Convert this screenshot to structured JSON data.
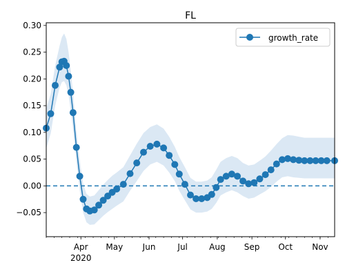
{
  "chart_data": {
    "type": "line",
    "title": "FL",
    "xlabel": "",
    "ylabel": "",
    "xlim": [
      "2020-03-01",
      "2020-11-14"
    ],
    "ylim": [
      -0.095,
      0.305
    ],
    "x_ticks": [
      {
        "date": "2020-04-01",
        "label": "Apr",
        "sublabel": "2020"
      },
      {
        "date": "2020-05-01",
        "label": "May",
        "sublabel": ""
      },
      {
        "date": "2020-06-01",
        "label": "Jun",
        "sublabel": ""
      },
      {
        "date": "2020-07-01",
        "label": "Jul",
        "sublabel": ""
      },
      {
        "date": "2020-08-01",
        "label": "Aug",
        "sublabel": ""
      },
      {
        "date": "2020-09-01",
        "label": "Sep",
        "sublabel": ""
      },
      {
        "date": "2020-10-01",
        "label": "Oct",
        "sublabel": ""
      },
      {
        "date": "2020-11-01",
        "label": "Nov",
        "sublabel": ""
      }
    ],
    "y_ticks": [
      -0.05,
      0.0,
      0.05,
      0.1,
      0.15,
      0.2,
      0.25,
      0.3
    ],
    "y_tick_labels": [
      "−0.05",
      "0.00",
      "0.05",
      "0.10",
      "0.15",
      "0.20",
      "0.25",
      "0.30"
    ],
    "legend": {
      "position": "top-right",
      "entries": [
        "growth_rate"
      ]
    },
    "reference_line": {
      "y": 0.0,
      "style": "dashed"
    },
    "grid": false,
    "colors": {
      "series": "#1f77b4",
      "band": "#dbe8f4"
    },
    "series": [
      {
        "name": "growth_rate",
        "marker": "circle",
        "x": [
          "2020-03-01",
          "2020-03-05",
          "2020-03-09",
          "2020-03-13",
          "2020-03-15",
          "2020-03-17",
          "2020-03-19",
          "2020-03-21",
          "2020-03-23",
          "2020-03-25",
          "2020-03-28",
          "2020-03-31",
          "2020-04-03",
          "2020-04-06",
          "2020-04-09",
          "2020-04-13",
          "2020-04-17",
          "2020-04-21",
          "2020-04-25",
          "2020-04-29",
          "2020-05-03",
          "2020-05-09",
          "2020-05-15",
          "2020-05-21",
          "2020-05-27",
          "2020-06-02",
          "2020-06-08",
          "2020-06-14",
          "2020-06-19",
          "2020-06-24",
          "2020-06-28",
          "2020-07-03",
          "2020-07-08",
          "2020-07-13",
          "2020-07-18",
          "2020-07-23",
          "2020-07-27",
          "2020-07-31",
          "2020-08-04",
          "2020-08-09",
          "2020-08-14",
          "2020-08-19",
          "2020-08-24",
          "2020-08-29",
          "2020-09-03",
          "2020-09-08",
          "2020-09-13",
          "2020-09-18",
          "2020-09-23",
          "2020-09-28",
          "2020-10-03",
          "2020-10-08",
          "2020-10-13",
          "2020-10-18",
          "2020-10-23",
          "2020-10-28",
          "2020-11-02",
          "2020-11-07",
          "2020-11-14"
        ],
        "y": [
          0.108,
          0.135,
          0.188,
          0.222,
          0.232,
          0.233,
          0.225,
          0.205,
          0.175,
          0.137,
          0.072,
          0.018,
          -0.025,
          -0.043,
          -0.047,
          -0.045,
          -0.036,
          -0.027,
          -0.019,
          -0.012,
          -0.006,
          0.003,
          0.023,
          0.043,
          0.063,
          0.074,
          0.078,
          0.071,
          0.057,
          0.04,
          0.022,
          0.003,
          -0.017,
          -0.024,
          -0.024,
          -0.022,
          -0.016,
          -0.003,
          0.012,
          0.018,
          0.022,
          0.018,
          0.009,
          0.004,
          0.006,
          0.013,
          0.021,
          0.03,
          0.041,
          0.049,
          0.051,
          0.049,
          0.048,
          0.047,
          0.047,
          0.047,
          0.047,
          0.047,
          0.047
        ],
        "lower": [
          0.07,
          0.098,
          0.15,
          0.184,
          0.194,
          0.196,
          0.188,
          0.17,
          0.14,
          0.105,
          0.045,
          -0.008,
          -0.05,
          -0.068,
          -0.073,
          -0.072,
          -0.064,
          -0.056,
          -0.049,
          -0.043,
          -0.037,
          -0.029,
          -0.009,
          0.009,
          0.028,
          0.04,
          0.045,
          0.038,
          0.025,
          0.009,
          -0.009,
          -0.027,
          -0.044,
          -0.05,
          -0.05,
          -0.048,
          -0.043,
          -0.032,
          -0.018,
          -0.012,
          -0.008,
          -0.012,
          -0.019,
          -0.024,
          -0.022,
          -0.016,
          -0.01,
          -0.002,
          0.008,
          0.016,
          0.018,
          0.016,
          0.015,
          0.014,
          0.014,
          0.014,
          0.014,
          0.014,
          0.014
        ],
        "upper": [
          0.145,
          0.172,
          0.225,
          0.262,
          0.278,
          0.285,
          0.275,
          0.25,
          0.215,
          0.172,
          0.103,
          0.047,
          0.004,
          -0.015,
          -0.02,
          -0.018,
          -0.008,
          0.002,
          0.011,
          0.019,
          0.025,
          0.035,
          0.057,
          0.079,
          0.099,
          0.11,
          0.115,
          0.107,
          0.092,
          0.073,
          0.054,
          0.035,
          0.015,
          0.008,
          0.008,
          0.01,
          0.016,
          0.03,
          0.045,
          0.052,
          0.056,
          0.052,
          0.043,
          0.038,
          0.04,
          0.047,
          0.055,
          0.066,
          0.078,
          0.089,
          0.095,
          0.094,
          0.092,
          0.09,
          0.09,
          0.09,
          0.09,
          0.09,
          0.09
        ]
      }
    ]
  }
}
